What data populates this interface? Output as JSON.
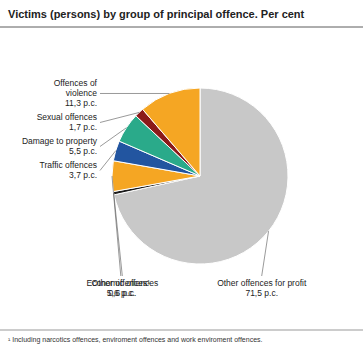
{
  "chart_data": {
    "type": "pie",
    "title": "Victims (persons) by group of principal offence. Per cent",
    "footnote": "¹ Including narcotics offences, enviroment offences and work enviroment offences.",
    "categories": [
      "Other offences for profit",
      "Economic offences",
      "Other offences¹",
      "Traffic offences",
      "Damage to property",
      "Sexual offences",
      "Offences of\nviolence"
    ],
    "values": [
      71.5,
      0.6,
      5.6,
      3.7,
      5.5,
      1.7,
      11.3
    ],
    "value_labels": [
      "71,5 p.c.",
      "0,6 p.c.",
      "5,6 p.c.",
      "3,7 p.c.",
      "5,5 p.c.",
      "1,7 p.c.",
      "11,3 p.c."
    ],
    "colors": [
      "#c8c8c8",
      "#1a1a1a",
      "#f5a623",
      "#2255a0",
      "#2aaa8a",
      "#8b1a1a",
      "#f5a623"
    ],
    "data_labels": true
  }
}
